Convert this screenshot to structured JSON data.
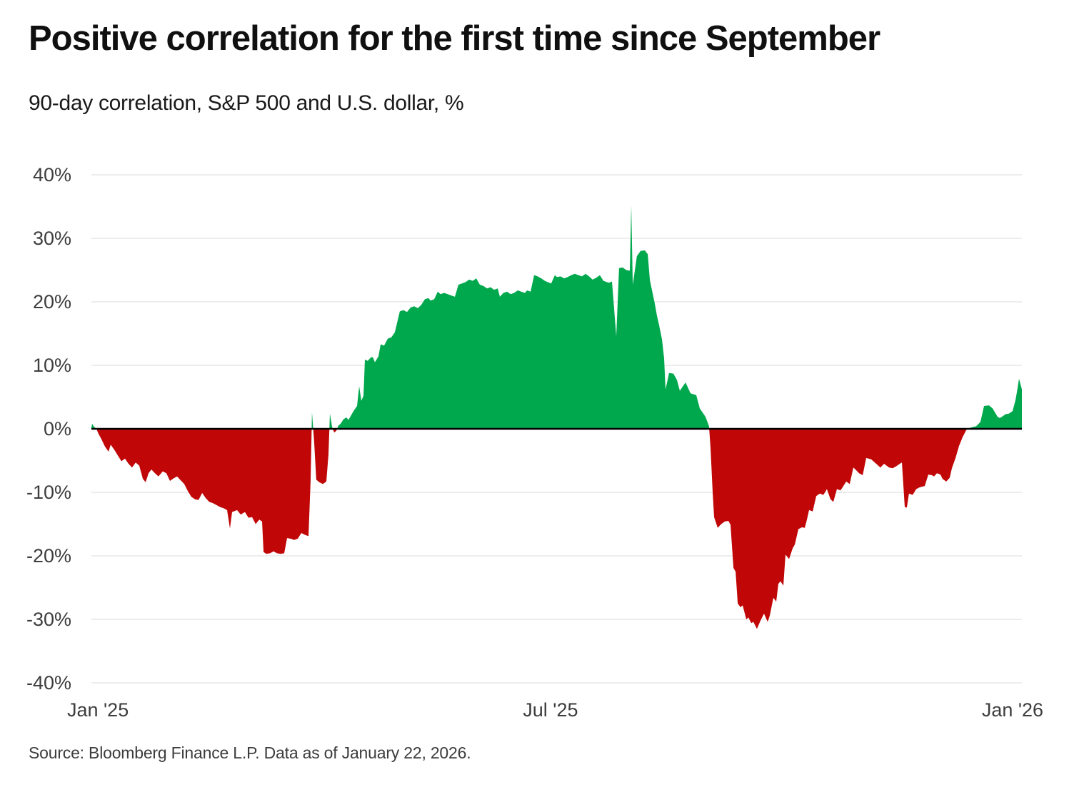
{
  "chart_data": {
    "type": "area",
    "title": "Positive correlation for the first time since September",
    "subtitle": "90-day correlation, S&P 500 and U.S. dollar, %",
    "source": "Source: Bloomberg Finance L.P. Data as of January 22, 2026.",
    "series_name": "90-day correlation, S&P 500 and U.S. dollar",
    "ylim": [
      -40,
      40
    ],
    "grid": true,
    "legend": "none",
    "colors": {
      "positive": "#00A84D",
      "negative": "#C00606",
      "zero_line": "#000000",
      "grid": "#E7E7E7",
      "title_text": "#101010",
      "axis_text": "#3D3D3D"
    },
    "y_ticks": [
      {
        "label": "40%",
        "value": 40
      },
      {
        "label": "30%",
        "value": 30
      },
      {
        "label": "20%",
        "value": 20
      },
      {
        "label": "10%",
        "value": 10
      },
      {
        "label": "0%",
        "value": 0
      },
      {
        "label": "-10%",
        "value": -10
      },
      {
        "label": "-20%",
        "value": -20
      },
      {
        "label": "-30%",
        "value": -30
      },
      {
        "label": "-40%",
        "value": -40
      }
    ],
    "x_ticks": [
      {
        "label": "Jan '25",
        "f": 0.007
      },
      {
        "label": "Jul '25",
        "f": 0.4934
      },
      {
        "label": "Jan '26",
        "f": 0.99
      }
    ],
    "points": [
      [
        0.0,
        0.2
      ],
      [
        0.0008,
        0.8
      ],
      [
        0.0023,
        0.4
      ],
      [
        0.0054,
        0.0
      ],
      [
        0.0077,
        -0.8
      ],
      [
        0.0107,
        -1.6
      ],
      [
        0.0146,
        -2.8
      ],
      [
        0.0184,
        -3.6
      ],
      [
        0.0207,
        -2.5
      ],
      [
        0.0246,
        -3.3
      ],
      [
        0.0284,
        -4.2
      ],
      [
        0.0322,
        -5.1
      ],
      [
        0.0361,
        -4.7
      ],
      [
        0.0399,
        -5.5
      ],
      [
        0.0437,
        -6.1
      ],
      [
        0.0476,
        -5.3
      ],
      [
        0.0514,
        -5.8
      ],
      [
        0.0553,
        -7.9
      ],
      [
        0.0583,
        -8.4
      ],
      [
        0.0614,
        -7.0
      ],
      [
        0.0645,
        -6.4
      ],
      [
        0.0683,
        -7.0
      ],
      [
        0.0721,
        -7.5
      ],
      [
        0.0767,
        -6.7
      ],
      [
        0.0806,
        -7.0
      ],
      [
        0.0844,
        -8.2
      ],
      [
        0.0883,
        -7.8
      ],
      [
        0.0921,
        -7.5
      ],
      [
        0.0959,
        -8.1
      ],
      [
        0.0998,
        -8.7
      ],
      [
        0.1036,
        -9.8
      ],
      [
        0.1074,
        -10.7
      ],
      [
        0.1113,
        -11.1
      ],
      [
        0.1151,
        -11.2
      ],
      [
        0.119,
        -10.1
      ],
      [
        0.1228,
        -10.9
      ],
      [
        0.1266,
        -11.5
      ],
      [
        0.1305,
        -11.7
      ],
      [
        0.1343,
        -12.0
      ],
      [
        0.1381,
        -12.3
      ],
      [
        0.142,
        -12.5
      ],
      [
        0.1458,
        -12.8
      ],
      [
        0.1489,
        -15.7
      ],
      [
        0.1512,
        -13.1
      ],
      [
        0.1566,
        -12.8
      ],
      [
        0.1604,
        -13.5
      ],
      [
        0.165,
        -13.1
      ],
      [
        0.1688,
        -14.0
      ],
      [
        0.1727,
        -13.9
      ],
      [
        0.1765,
        -15.0
      ],
      [
        0.1804,
        -14.3
      ],
      [
        0.1834,
        -14.6
      ],
      [
        0.185,
        -19.4
      ],
      [
        0.188,
        -19.7
      ],
      [
        0.1919,
        -19.6
      ],
      [
        0.1957,
        -19.3
      ],
      [
        0.1995,
        -19.6
      ],
      [
        0.2034,
        -19.7
      ],
      [
        0.2072,
        -19.6
      ],
      [
        0.2103,
        -17.2
      ],
      [
        0.2141,
        -17.3
      ],
      [
        0.2179,
        -17.5
      ],
      [
        0.2218,
        -17.3
      ],
      [
        0.2256,
        -16.4
      ],
      [
        0.2295,
        -16.7
      ],
      [
        0.2333,
        -16.9
      ],
      [
        0.2356,
        -8.0
      ],
      [
        0.2371,
        2.6
      ],
      [
        0.2394,
        -2.0
      ],
      [
        0.2417,
        -8.0
      ],
      [
        0.2448,
        -8.4
      ],
      [
        0.2487,
        -8.7
      ],
      [
        0.2525,
        -8.3
      ],
      [
        0.2548,
        -4.0
      ],
      [
        0.2563,
        2.4
      ],
      [
        0.2586,
        0.3
      ],
      [
        0.2609,
        -0.6
      ],
      [
        0.2632,
        -0.3
      ],
      [
        0.2655,
        0.5
      ],
      [
        0.2678,
        0.8
      ],
      [
        0.2709,
        1.5
      ],
      [
        0.274,
        1.8
      ],
      [
        0.2763,
        1.4
      ],
      [
        0.2794,
        2.2
      ],
      [
        0.2817,
        2.8
      ],
      [
        0.2855,
        3.6
      ],
      [
        0.2878,
        6.7
      ],
      [
        0.2901,
        4.4
      ],
      [
        0.2924,
        5.2
      ],
      [
        0.2939,
        10.9
      ],
      [
        0.297,
        10.7
      ],
      [
        0.3001,
        11.2
      ],
      [
        0.3024,
        11.3
      ],
      [
        0.3047,
        10.5
      ],
      [
        0.3085,
        11.4
      ],
      [
        0.3108,
        13.3
      ],
      [
        0.3146,
        13.1
      ],
      [
        0.3185,
        14.2
      ],
      [
        0.3223,
        14.4
      ],
      [
        0.3261,
        15.2
      ],
      [
        0.3315,
        18.5
      ],
      [
        0.3353,
        18.7
      ],
      [
        0.3392,
        18.4
      ],
      [
        0.343,
        19.1
      ],
      [
        0.3469,
        19.3
      ],
      [
        0.3507,
        19.0
      ],
      [
        0.3545,
        19.5
      ],
      [
        0.3584,
        20.4
      ],
      [
        0.3622,
        20.6
      ],
      [
        0.3645,
        20.2
      ],
      [
        0.3684,
        20.4
      ],
      [
        0.3722,
        21.6
      ],
      [
        0.3753,
        21.2
      ],
      [
        0.3791,
        21.4
      ],
      [
        0.3829,
        21.2
      ],
      [
        0.3868,
        21.0
      ],
      [
        0.3906,
        20.8
      ],
      [
        0.3945,
        22.7
      ],
      [
        0.3983,
        22.9
      ],
      [
        0.4021,
        23.1
      ],
      [
        0.406,
        23.5
      ],
      [
        0.4098,
        23.3
      ],
      [
        0.4136,
        23.7
      ],
      [
        0.4175,
        22.7
      ],
      [
        0.4213,
        22.5
      ],
      [
        0.4252,
        22.1
      ],
      [
        0.429,
        22.3
      ],
      [
        0.4328,
        21.9
      ],
      [
        0.4367,
        22.1
      ],
      [
        0.439,
        20.8
      ],
      [
        0.4428,
        21.4
      ],
      [
        0.4467,
        21.6
      ],
      [
        0.4505,
        21.2
      ],
      [
        0.4543,
        21.4
      ],
      [
        0.4582,
        21.8
      ],
      [
        0.462,
        21.6
      ],
      [
        0.4659,
        21.4
      ],
      [
        0.4682,
        21.8
      ],
      [
        0.472,
        21.6
      ],
      [
        0.4758,
        24.2
      ],
      [
        0.4797,
        24.0
      ],
      [
        0.4835,
        23.7
      ],
      [
        0.4873,
        23.3
      ],
      [
        0.4904,
        23.1
      ],
      [
        0.4942,
        22.9
      ],
      [
        0.4981,
        24.2
      ],
      [
        0.5004,
        23.9
      ],
      [
        0.5042,
        24.0
      ],
      [
        0.508,
        23.7
      ],
      [
        0.5119,
        23.9
      ],
      [
        0.5157,
        24.2
      ],
      [
        0.5196,
        24.4
      ],
      [
        0.5234,
        24.2
      ],
      [
        0.5272,
        24.0
      ],
      [
        0.5311,
        24.4
      ],
      [
        0.5349,
        24.0
      ],
      [
        0.5387,
        23.5
      ],
      [
        0.5426,
        23.8
      ],
      [
        0.5464,
        24.2
      ],
      [
        0.5503,
        23.3
      ],
      [
        0.5541,
        23.1
      ],
      [
        0.5564,
        23.0
      ],
      [
        0.5595,
        23.2
      ],
      [
        0.5641,
        14.6
      ],
      [
        0.5671,
        25.3
      ],
      [
        0.571,
        25.4
      ],
      [
        0.5748,
        25.0
      ],
      [
        0.5787,
        24.9
      ],
      [
        0.5802,
        35.2
      ],
      [
        0.5818,
        22.7
      ],
      [
        0.5863,
        27.2
      ],
      [
        0.5902,
        28.0
      ],
      [
        0.5948,
        28.1
      ],
      [
        0.5979,
        27.5
      ],
      [
        0.6002,
        23.4
      ],
      [
        0.6055,
        19.7
      ],
      [
        0.6078,
        17.8
      ],
      [
        0.6101,
        16.3
      ],
      [
        0.6132,
        14.1
      ],
      [
        0.6155,
        11.1
      ],
      [
        0.617,
        6.2
      ],
      [
        0.6209,
        8.8
      ],
      [
        0.6255,
        8.7
      ],
      [
        0.6293,
        7.7
      ],
      [
        0.6324,
        6.0
      ],
      [
        0.6385,
        7.3
      ],
      [
        0.6439,
        5.6
      ],
      [
        0.65,
        5.3
      ],
      [
        0.6539,
        3.2
      ],
      [
        0.66,
        1.9
      ],
      [
        0.6638,
        0.4
      ],
      [
        0.6654,
        -3.0
      ],
      [
        0.6677,
        -10.0
      ],
      [
        0.6692,
        -13.9
      ],
      [
        0.6731,
        -15.6
      ],
      [
        0.6769,
        -15.0
      ],
      [
        0.6807,
        -14.6
      ],
      [
        0.6846,
        -14.5
      ],
      [
        0.6869,
        -15.1
      ],
      [
        0.69,
        -21.9
      ],
      [
        0.6923,
        -22.5
      ],
      [
        0.6946,
        -27.5
      ],
      [
        0.6976,
        -28.1
      ],
      [
        0.6999,
        -27.8
      ],
      [
        0.7038,
        -30.0
      ],
      [
        0.7061,
        -29.7
      ],
      [
        0.7091,
        -30.6
      ],
      [
        0.7114,
        -30.4
      ],
      [
        0.7153,
        -31.5
      ],
      [
        0.7191,
        -30.2
      ],
      [
        0.7229,
        -29.1
      ],
      [
        0.7268,
        -30.4
      ],
      [
        0.7291,
        -29.4
      ],
      [
        0.7329,
        -26.6
      ],
      [
        0.736,
        -27.2
      ],
      [
        0.7383,
        -24.4
      ],
      [
        0.7406,
        -24.0
      ],
      [
        0.7437,
        -24.7
      ],
      [
        0.746,
        -19.8
      ],
      [
        0.7498,
        -20.5
      ],
      [
        0.7537,
        -18.8
      ],
      [
        0.756,
        -18.2
      ],
      [
        0.7598,
        -15.8
      ],
      [
        0.7636,
        -15.5
      ],
      [
        0.7667,
        -15.6
      ],
      [
        0.769,
        -14.3
      ],
      [
        0.7713,
        -12.8
      ],
      [
        0.7752,
        -13.0
      ],
      [
        0.779,
        -10.6
      ],
      [
        0.7828,
        -10.2
      ],
      [
        0.7867,
        -10.4
      ],
      [
        0.7905,
        -9.5
      ],
      [
        0.7943,
        -11.1
      ],
      [
        0.7974,
        -11.5
      ],
      [
        0.8012,
        -9.5
      ],
      [
        0.8051,
        -9.7
      ],
      [
        0.8074,
        -9.2
      ],
      [
        0.8112,
        -8.3
      ],
      [
        0.815,
        -8.7
      ],
      [
        0.8189,
        -6.1
      ],
      [
        0.8212,
        -6.4
      ],
      [
        0.825,
        -7.0
      ],
      [
        0.8289,
        -7.3
      ],
      [
        0.8327,
        -4.6
      ],
      [
        0.8381,
        -4.8
      ],
      [
        0.8434,
        -5.5
      ],
      [
        0.848,
        -6.1
      ],
      [
        0.8519,
        -5.5
      ],
      [
        0.8573,
        -6.1
      ],
      [
        0.8611,
        -6.2
      ],
      [
        0.8649,
        -5.9
      ],
      [
        0.8688,
        -5.5
      ],
      [
        0.8711,
        -5.3
      ],
      [
        0.8741,
        -12.3
      ],
      [
        0.8764,
        -12.4
      ],
      [
        0.8787,
        -10.2
      ],
      [
        0.8826,
        -10.4
      ],
      [
        0.8864,
        -9.5
      ],
      [
        0.8903,
        -9.2
      ],
      [
        0.8956,
        -9.0
      ],
      [
        0.8995,
        -7.2
      ],
      [
        0.9033,
        -7.3
      ],
      [
        0.9056,
        -7.5
      ],
      [
        0.9087,
        -7.0
      ],
      [
        0.9125,
        -7.2
      ],
      [
        0.9148,
        -7.9
      ],
      [
        0.9187,
        -8.3
      ],
      [
        0.9225,
        -7.7
      ],
      [
        0.9248,
        -6.2
      ],
      [
        0.9287,
        -4.6
      ],
      [
        0.9325,
        -2.7
      ],
      [
        0.9363,
        -1.3
      ],
      [
        0.9402,
        -0.2
      ],
      [
        0.9432,
        0.1
      ],
      [
        0.9478,
        0.3
      ],
      [
        0.9509,
        0.4
      ],
      [
        0.9555,
        1.1
      ],
      [
        0.9593,
        3.6
      ],
      [
        0.9647,
        3.7
      ],
      [
        0.967,
        3.4
      ],
      [
        0.9686,
        3.2
      ],
      [
        0.9739,
        1.9
      ],
      [
        0.9762,
        1.7
      ],
      [
        0.9785,
        1.9
      ],
      [
        0.9824,
        2.3
      ],
      [
        0.9862,
        2.4
      ],
      [
        0.99,
        2.8
      ],
      [
        0.9931,
        4.5
      ],
      [
        0.9954,
        6.4
      ],
      [
        0.9969,
        7.9
      ],
      [
        1.0,
        6.2
      ]
    ]
  }
}
